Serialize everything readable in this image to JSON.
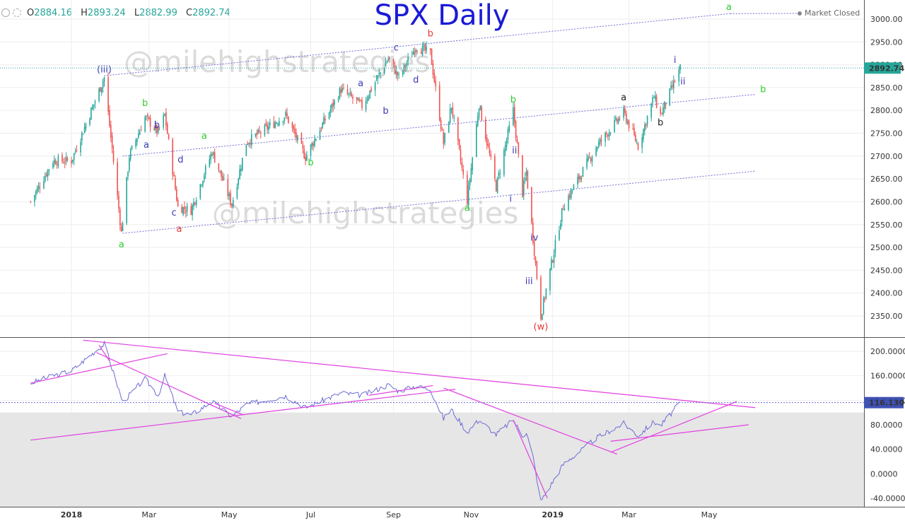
{
  "header": {
    "open_label": "O",
    "open_value": "2884.16",
    "high_label": "H",
    "high_value": "2893.24",
    "low_label": "L",
    "low_value": "2882.99",
    "close_label": "C",
    "close_value": "2892.74",
    "market_status": "Market Closed",
    "ohlc_color": "#26a69a"
  },
  "watermark": "@milehighstrategies",
  "chart_data": [
    {
      "type": "candlestick",
      "title": "SPX Daily",
      "title_color": "#1a1ad6",
      "ylim": [
        2310,
        3030
      ],
      "y_ticks": [
        "3000.00",
        "2950.00",
        "2900.00",
        "2850.00",
        "2800.00",
        "2750.00",
        "2700.00",
        "2650.00",
        "2600.00",
        "2550.00",
        "2500.00",
        "2450.00",
        "2400.00",
        "2350.00"
      ],
      "last_price": "2892.74",
      "up_color": "#26a69a",
      "down_color": "#ef5350",
      "price_path": [
        [
          "2017-12-01",
          2600
        ],
        [
          "2017-12-18",
          2690
        ],
        [
          "2018-01-01",
          2690
        ],
        [
          "2018-01-26",
          2872
        ],
        [
          "2018-02-08",
          2532
        ],
        [
          "2018-02-14",
          2700
        ],
        [
          "2018-02-26",
          2785
        ],
        [
          "2018-03-08",
          2752
        ],
        [
          "2018-03-13",
          2790
        ],
        [
          "2018-03-23",
          2588
        ],
        [
          "2018-04-02",
          2582
        ],
        [
          "2018-04-18",
          2710
        ],
        [
          "2018-05-03",
          2594
        ],
        [
          "2018-05-14",
          2730
        ],
        [
          "2018-06-13",
          2790
        ],
        [
          "2018-06-28",
          2698
        ],
        [
          "2018-07-25",
          2846
        ],
        [
          "2018-08-10",
          2810
        ],
        [
          "2018-08-30",
          2914
        ],
        [
          "2018-09-07",
          2872
        ],
        [
          "2018-09-20",
          2940
        ],
        [
          "2018-10-01",
          2925
        ],
        [
          "2018-10-11",
          2728
        ],
        [
          "2018-10-17",
          2810
        ],
        [
          "2018-10-29",
          2603
        ],
        [
          "2018-11-07",
          2814
        ],
        [
          "2018-11-20",
          2632
        ],
        [
          "2018-12-03",
          2800
        ],
        [
          "2018-12-10",
          2620
        ],
        [
          "2018-12-13",
          2665
        ],
        [
          "2018-12-18",
          2520
        ],
        [
          "2018-12-24",
          2351
        ],
        [
          "2019-01-10",
          2590
        ],
        [
          "2019-02-04",
          2720
        ],
        [
          "2019-02-25",
          2795
        ],
        [
          "2019-03-08",
          2722
        ],
        [
          "2019-03-20",
          2830
        ],
        [
          "2019-03-25",
          2790
        ],
        [
          "2019-04-09",
          2892
        ]
      ],
      "x_ticks": [
        {
          "date": "2018-01-01",
          "label": "2018",
          "bold": true
        },
        {
          "date": "2018-03-01",
          "label": "Mar",
          "bold": false
        },
        {
          "date": "2018-05-01",
          "label": "May",
          "bold": false
        },
        {
          "date": "2018-07-02",
          "label": "Jul",
          "bold": false
        },
        {
          "date": "2018-09-03",
          "label": "Sep",
          "bold": false
        },
        {
          "date": "2018-11-01",
          "label": "Nov",
          "bold": false
        },
        {
          "date": "2019-01-02",
          "label": "2019",
          "bold": true
        },
        {
          "date": "2019-03-01",
          "label": "Mar",
          "bold": false
        },
        {
          "date": "2019-05-01",
          "label": "May",
          "bold": false
        }
      ],
      "wave_labels": [
        {
          "text": "(iii)",
          "date": "2018-01-26",
          "price": 2883,
          "color": "#3a3ab5"
        },
        {
          "text": "a",
          "date": "2018-02-08",
          "price": 2500,
          "color": "#2ecc2e"
        },
        {
          "text": "b",
          "date": "2018-02-26",
          "price": 2810,
          "color": "#2ecc2e"
        },
        {
          "text": "a",
          "date": "2018-02-27",
          "price": 2718,
          "color": "#3a3ab5"
        },
        {
          "text": "b",
          "date": "2018-03-07",
          "price": 2762,
          "color": "#3a3ab5"
        },
        {
          "text": "c",
          "date": "2018-03-20",
          "price": 2570,
          "color": "#3a3ab5"
        },
        {
          "text": "d",
          "date": "2018-03-25",
          "price": 2686,
          "color": "#3a3ab5"
        },
        {
          "text": "a",
          "date": "2018-03-24",
          "price": 2534,
          "color": "#e53935"
        },
        {
          "text": "a",
          "date": "2018-04-12",
          "price": 2738,
          "color": "#2ecc2e"
        },
        {
          "text": "b",
          "date": "2018-07-02",
          "price": 2680,
          "color": "#2ecc2e"
        },
        {
          "text": "a",
          "date": "2018-08-09",
          "price": 2853,
          "color": "#3a3ab5"
        },
        {
          "text": "b",
          "date": "2018-08-28",
          "price": 2793,
          "color": "#3a3ab5"
        },
        {
          "text": "c",
          "date": "2018-09-05",
          "price": 2931,
          "color": "#3a3ab5"
        },
        {
          "text": "d",
          "date": "2018-09-20",
          "price": 2861,
          "color": "#3a3ab5"
        },
        {
          "text": "b",
          "date": "2018-10-01",
          "price": 2962,
          "color": "#e53935"
        },
        {
          "text": "a",
          "date": "2018-10-29",
          "price": 2580,
          "color": "#2ecc2e"
        },
        {
          "text": "b",
          "date": "2018-12-03",
          "price": 2817,
          "color": "#2ecc2e"
        },
        {
          "text": "ii",
          "date": "2018-12-04",
          "price": 2706,
          "color": "#3a3ab5"
        },
        {
          "text": "i",
          "date": "2018-12-01",
          "price": 2600,
          "color": "#3a3ab5"
        },
        {
          "text": "iv",
          "date": "2018-12-19",
          "price": 2515,
          "color": "#3a3ab5"
        },
        {
          "text": "iii",
          "date": "2018-12-15",
          "price": 2420,
          "color": "#3a3ab5"
        },
        {
          "text": "(w)",
          "date": "2018-12-24",
          "price": 2320,
          "color": "#e53935"
        },
        {
          "text": "a",
          "date": "2019-02-25",
          "price": 2822,
          "color": "#222222"
        },
        {
          "text": "b",
          "date": "2019-03-25",
          "price": 2767,
          "color": "#222222"
        },
        {
          "text": "i",
          "date": "2019-04-05",
          "price": 2904,
          "color": "#3a3ab5"
        },
        {
          "text": "ii",
          "date": "2019-04-11",
          "price": 2857,
          "color": "#3a3ab5"
        },
        {
          "text": "a",
          "date": "2019-05-16",
          "price": 3020,
          "color": "#2ecc2e"
        },
        {
          "text": "b",
          "date": "2019-06-11",
          "price": 2840,
          "color": "#2ecc2e"
        }
      ],
      "trendlines": [
        {
          "d1": "2018-01-26",
          "p1": 2876,
          "d2": "2019-05-17",
          "p2": 3012,
          "color": "#6f6fd8"
        },
        {
          "d1": "2018-02-09",
          "p1": 2700,
          "d2": "2019-06-05",
          "p2": 2835,
          "color": "#6f6fd8"
        },
        {
          "d1": "2018-02-09",
          "p1": 2531,
          "d2": "2019-06-05",
          "p2": 2667,
          "color": "#6f6fd8"
        }
      ]
    },
    {
      "type": "line",
      "ylim": [
        -50,
        220
      ],
      "y_ticks": [
        "200.0000",
        "160.0000",
        "120.0000",
        "80.0000",
        "40.0000",
        "0.0000",
        "-40.0000"
      ],
      "last_value": "116.1308",
      "line_color": "#6b6bd6",
      "shade_range": [
        -50,
        100
      ],
      "shade_color": "#e6e6e6",
      "values_path": [
        [
          "2017-12-01",
          148
        ],
        [
          "2017-12-18",
          160
        ],
        [
          "2018-01-01",
          168
        ],
        [
          "2018-01-26",
          212
        ],
        [
          "2018-02-09",
          117
        ],
        [
          "2018-02-26",
          155
        ],
        [
          "2018-03-08",
          128
        ],
        [
          "2018-03-13",
          160
        ],
        [
          "2018-03-23",
          101
        ],
        [
          "2018-04-02",
          96
        ],
        [
          "2018-04-18",
          118
        ],
        [
          "2018-05-03",
          93
        ],
        [
          "2018-05-14",
          113
        ],
        [
          "2018-06-13",
          127
        ],
        [
          "2018-06-28",
          108
        ],
        [
          "2018-07-25",
          132
        ],
        [
          "2018-08-10",
          128
        ],
        [
          "2018-08-30",
          145
        ],
        [
          "2018-09-07",
          135
        ],
        [
          "2018-09-20",
          143
        ],
        [
          "2018-10-01",
          138
        ],
        [
          "2018-10-11",
          90
        ],
        [
          "2018-10-17",
          105
        ],
        [
          "2018-10-29",
          68
        ],
        [
          "2018-11-07",
          88
        ],
        [
          "2018-11-20",
          64
        ],
        [
          "2018-12-03",
          88
        ],
        [
          "2018-12-10",
          62
        ],
        [
          "2018-12-13",
          68
        ],
        [
          "2018-12-18",
          28
        ],
        [
          "2018-12-24",
          -45
        ],
        [
          "2019-01-10",
          15
        ],
        [
          "2019-02-04",
          58
        ],
        [
          "2019-02-25",
          82
        ],
        [
          "2019-03-08",
          62
        ],
        [
          "2019-03-20",
          85
        ],
        [
          "2019-03-25",
          78
        ],
        [
          "2019-04-09",
          116
        ]
      ],
      "trendlines": [
        {
          "d1": "2017-12-01",
          "v1": 148,
          "d2": "2018-03-15",
          "v2": 196,
          "color": "#e040e0"
        },
        {
          "d1": "2018-01-10",
          "v1": 218,
          "d2": "2019-06-05",
          "v2": 108,
          "color": "#e040e0"
        },
        {
          "d1": "2018-01-20",
          "v1": 198,
          "d2": "2018-05-10",
          "v2": 90,
          "color": "#e040e0"
        },
        {
          "d1": "2018-01-22",
          "v1": 210,
          "d2": "2018-01-30",
          "v2": 184,
          "color": "#e040e0"
        },
        {
          "d1": "2017-12-01",
          "v1": 55,
          "d2": "2018-10-20",
          "v2": 138,
          "color": "#e040e0"
        },
        {
          "d1": "2018-04-20",
          "v1": 115,
          "d2": "2018-05-12",
          "v2": 96,
          "color": "#e040e0"
        },
        {
          "d1": "2018-08-15",
          "v1": 128,
          "d2": "2018-10-03",
          "v2": 144,
          "color": "#e040e0"
        },
        {
          "d1": "2018-10-11",
          "v1": 140,
          "d2": "2019-02-20",
          "v2": 32,
          "color": "#e040e0"
        },
        {
          "d1": "2018-12-03",
          "v1": 88,
          "d2": "2018-12-29",
          "v2": -40,
          "color": "#e040e0"
        },
        {
          "d1": "2019-02-15",
          "v1": 53,
          "d2": "2019-05-31",
          "v2": 80,
          "color": "#e040e0"
        },
        {
          "d1": "2019-02-15",
          "v1": 35,
          "d2": "2019-05-22",
          "v2": 118,
          "color": "#e040e0"
        }
      ]
    }
  ]
}
